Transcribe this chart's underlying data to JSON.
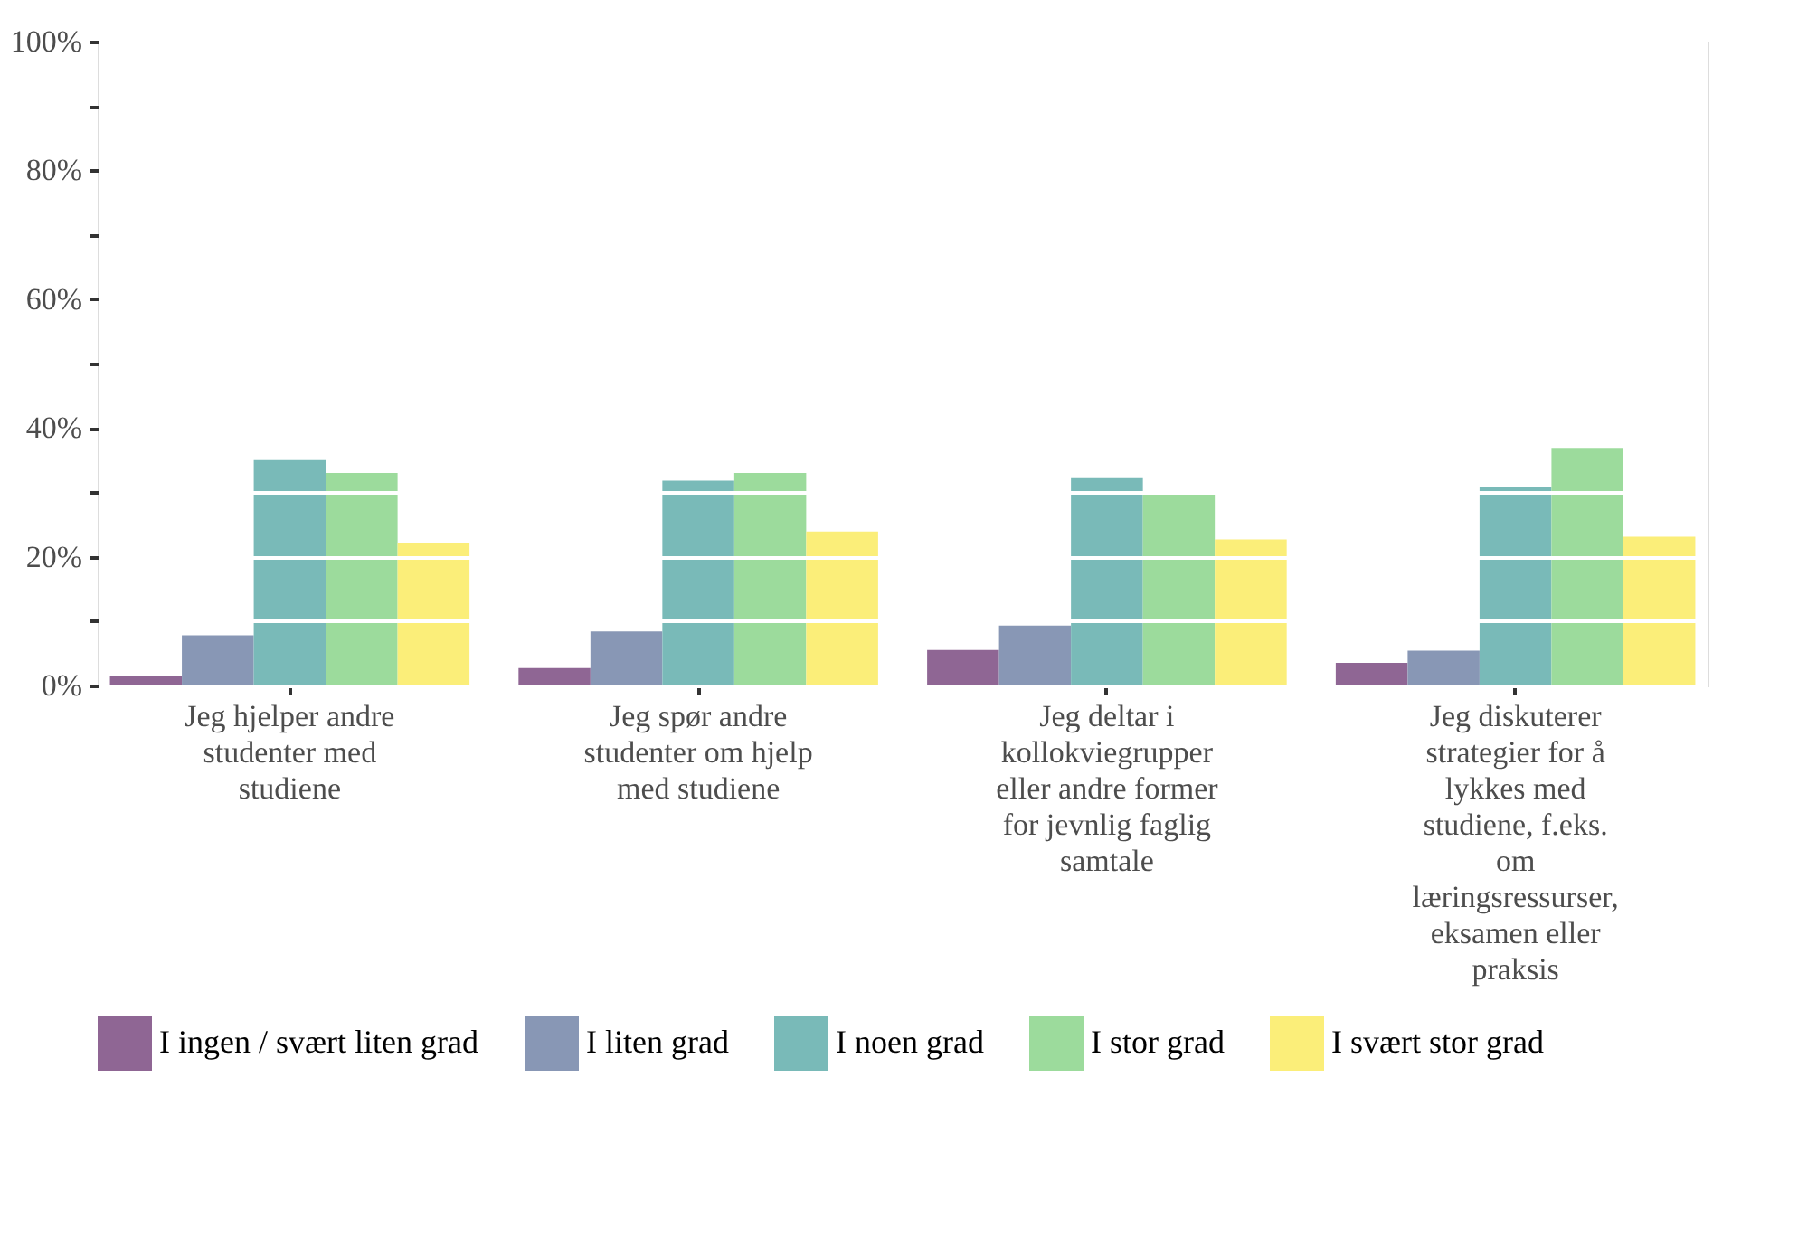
{
  "chart_data": {
    "type": "bar",
    "categories": [
      "Jeg hjelper andre studenter med studiene",
      "Jeg spør andre studenter om hjelp med studiene",
      "Jeg deltar i kollokviegrupper eller andre former for jevnlig faglig samtale",
      "Jeg diskuterer strategier for å lykkes med studiene, f.eks. om læringsressurser, eksamen eller praksis"
    ],
    "series": [
      {
        "name": "I ingen / svært liten grad",
        "color": "#8f6694",
        "values": [
          1.4,
          2.7,
          5.5,
          3.5
        ]
      },
      {
        "name": "I liten grad",
        "color": "#8897b5",
        "values": [
          7.8,
          8.4,
          9.3,
          5.4
        ]
      },
      {
        "name": "I noen grad",
        "color": "#79bab8",
        "values": [
          35.0,
          31.8,
          32.2,
          30.9
        ]
      },
      {
        "name": "I stor grad",
        "color": "#9cdb9c",
        "values": [
          33.0,
          33.0,
          29.7,
          36.9
        ]
      },
      {
        "name": "I svært stor grad",
        "color": "#fbee79",
        "values": [
          22.2,
          23.9,
          22.7,
          23.1
        ]
      }
    ],
    "ylim": [
      0,
      100
    ],
    "yticks": [
      {
        "value": 0,
        "label": "0%"
      },
      {
        "value": 10,
        "label": null
      },
      {
        "value": 20,
        "label": "20%"
      },
      {
        "value": 30,
        "label": null
      },
      {
        "value": 40,
        "label": "40%"
      },
      {
        "value": 50,
        "label": null
      },
      {
        "value": 60,
        "label": "60%"
      },
      {
        "value": 70,
        "label": null
      },
      {
        "value": 80,
        "label": "80%"
      },
      {
        "value": 90,
        "label": null
      },
      {
        "value": 100,
        "label": "100%"
      }
    ],
    "grid": true,
    "legend": "bottom"
  }
}
